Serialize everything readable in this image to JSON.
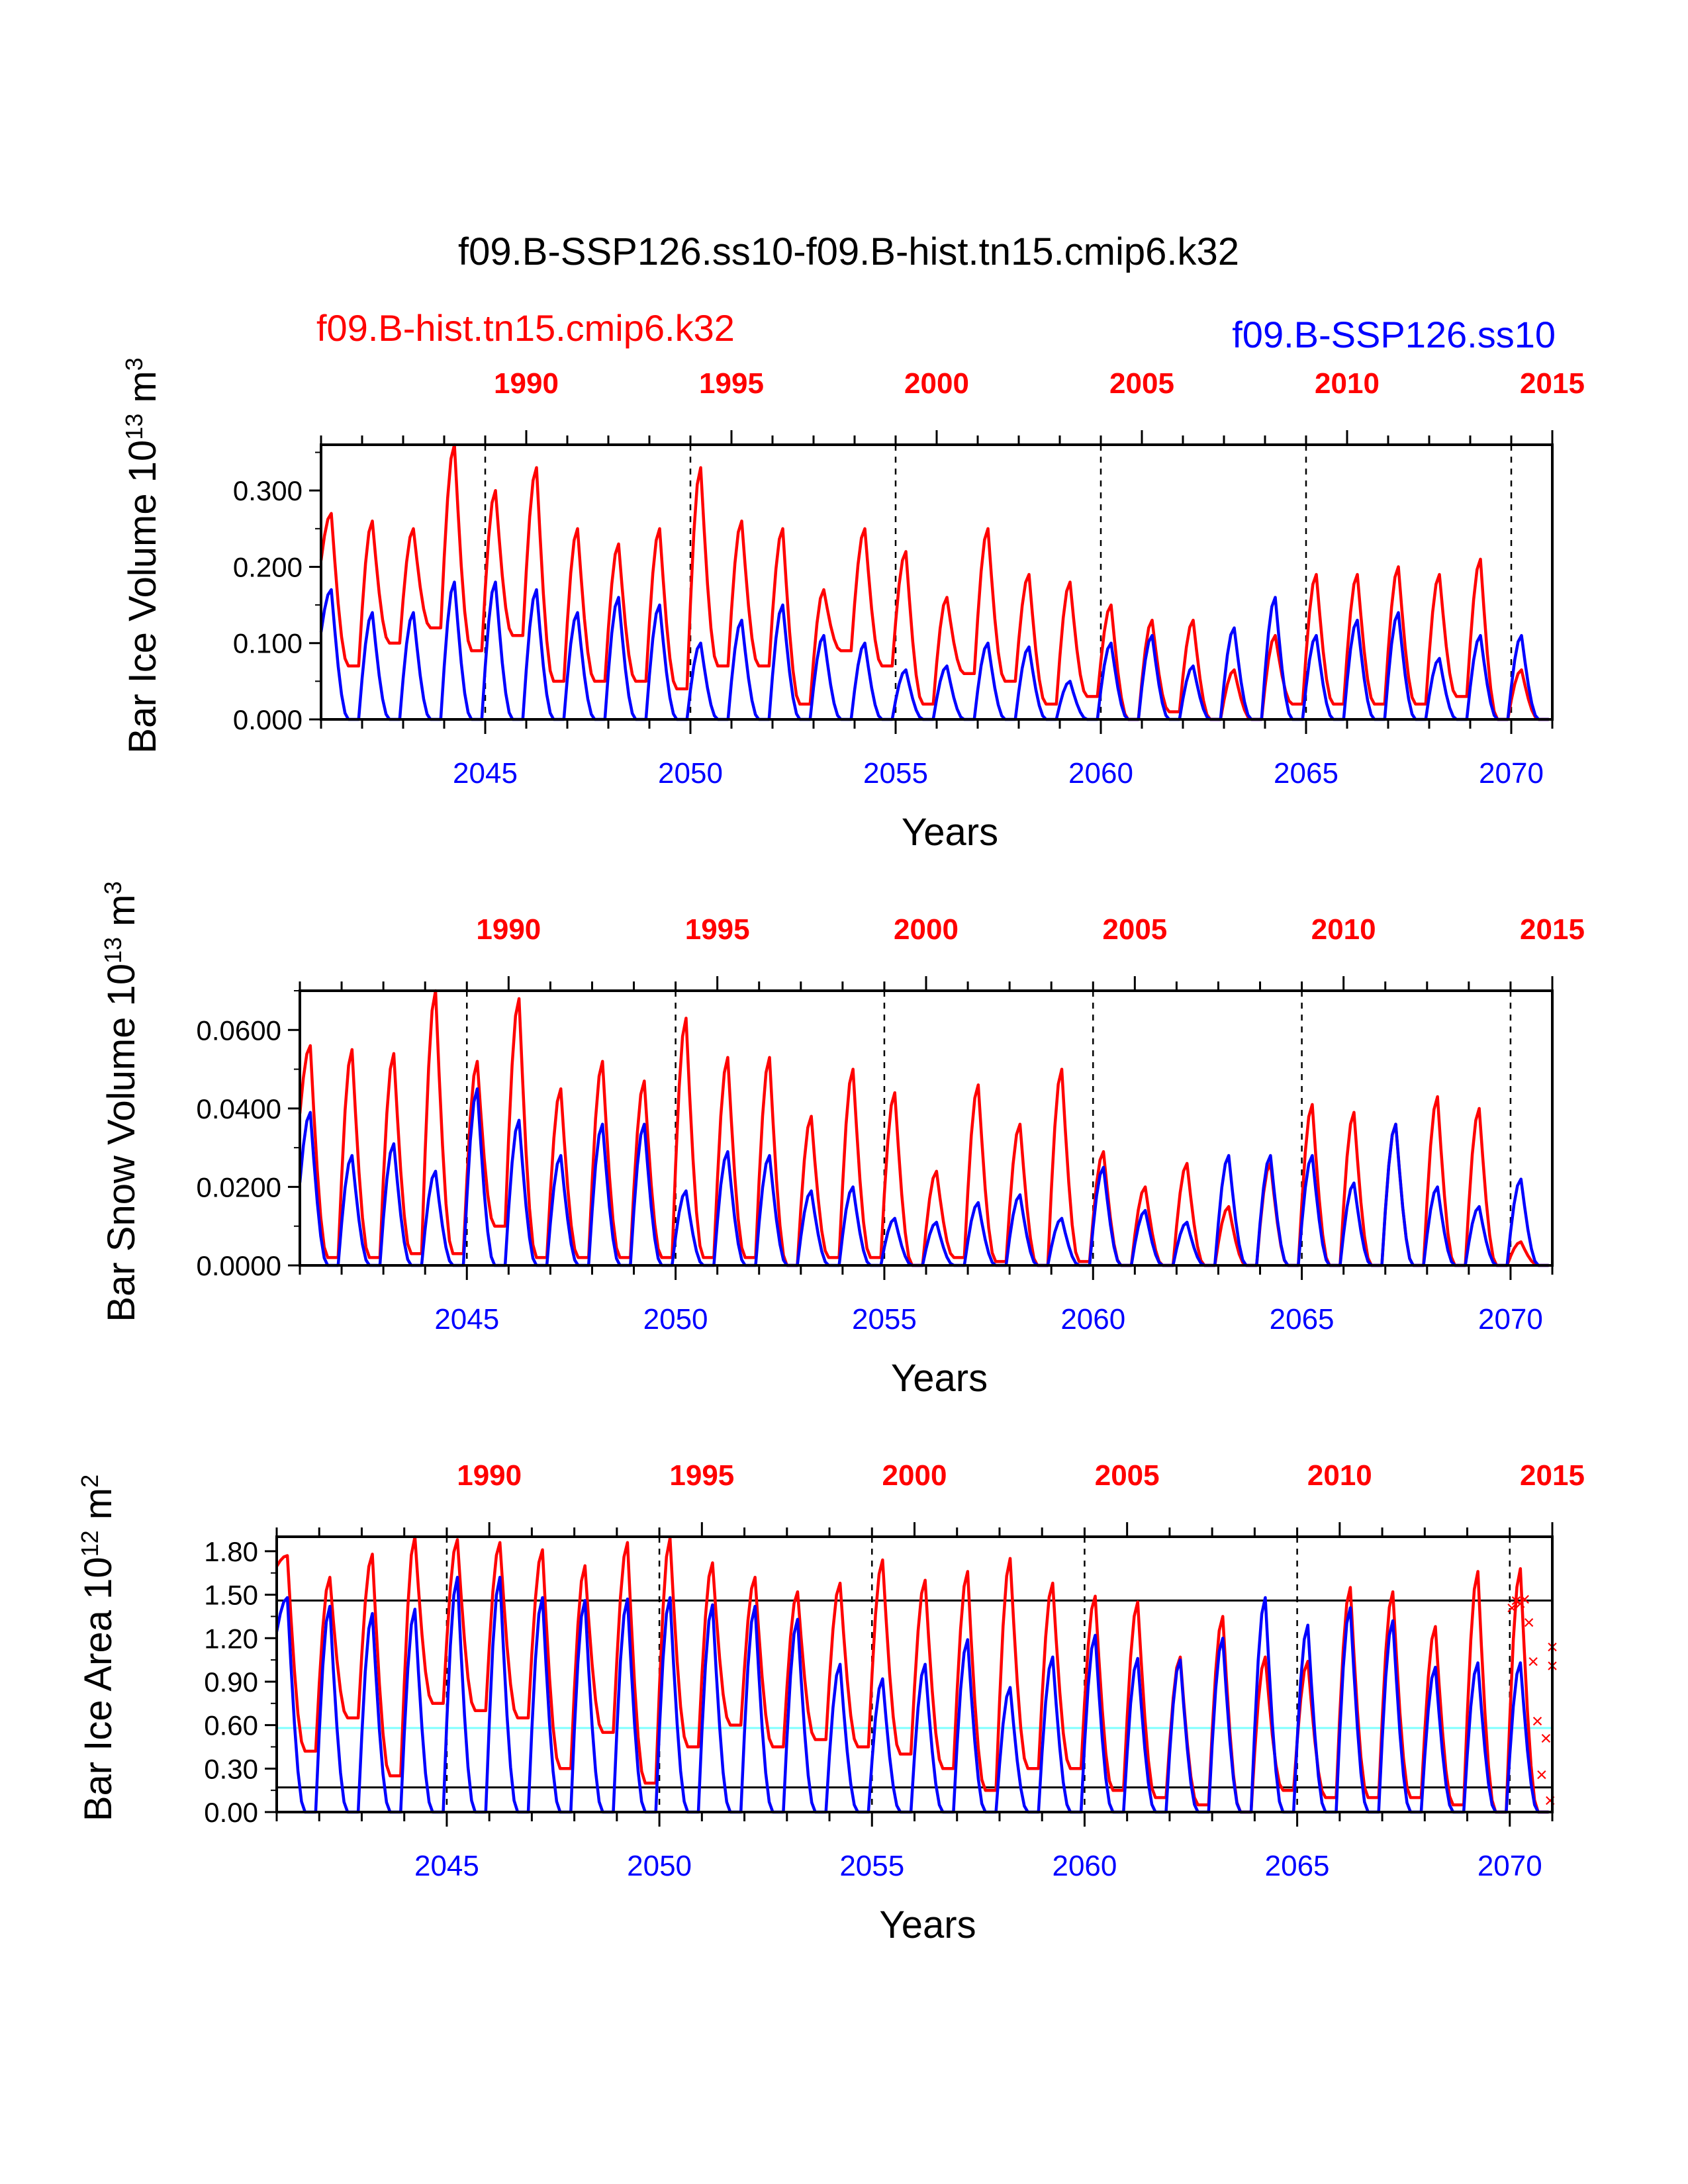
{
  "page": {
    "title": "f09.B-SSP126.ss10-f09.B-hist.tn15.cmip6.k32",
    "legend_left": "f09.B-hist.tn15.cmip6.k32",
    "legend_right": "f09.B-SSP126.ss10"
  },
  "colors": {
    "hist": "#ff0000",
    "ssp": "#0000ff",
    "reference_line": "#7fffff",
    "axis": "#000000"
  },
  "chart_data": [
    {
      "type": "line",
      "ylabel": "Bar Ice Volume 10",
      "ylabel_exp": "13",
      "ylabel_unit": " m",
      "ylabel_unit_exp": "3",
      "xlabel": "Years",
      "ylim": [
        0,
        0.36
      ],
      "yticks": [
        "0.000",
        "0.100",
        "0.200",
        "0.300"
      ],
      "ytick_values": [
        0,
        0.1,
        0.2,
        0.3
      ],
      "xlim": [
        2041,
        2071
      ],
      "bottom_ticks": [
        "2045",
        "2050",
        "2055",
        "2060",
        "2065",
        "2070"
      ],
      "bottom_tick_values": [
        2045,
        2050,
        2055,
        2060,
        2065,
        2070
      ],
      "top_ticks": [
        "1990",
        "1995",
        "2000",
        "2005",
        "2010",
        "2015"
      ],
      "top_tick_values": [
        2046,
        2051,
        2056,
        2061,
        2066,
        2071
      ],
      "divider_years": [
        2045,
        2050,
        2055,
        2060,
        2065,
        2070
      ],
      "series": [
        {
          "key": "hist",
          "annual_max": [
            0.27,
            0.26,
            0.25,
            0.36,
            0.3,
            0.33,
            0.25,
            0.23,
            0.25,
            0.33,
            0.26,
            0.25,
            0.17,
            0.25,
            0.22,
            0.16,
            0.25,
            0.19,
            0.18,
            0.15,
            0.13,
            0.13,
            0.065,
            0.11,
            0.19,
            0.19,
            0.2,
            0.19,
            0.21,
            0.065
          ],
          "annual_min": [
            0.17,
            0.07,
            0.1,
            0.12,
            0.09,
            0.11,
            0.05,
            0.05,
            0.05,
            0.04,
            0.07,
            0.07,
            0.02,
            0.09,
            0.07,
            0.02,
            0.06,
            0.05,
            0.02,
            0.03,
            0.0,
            0.01,
            0.0,
            0.0,
            0.02,
            0.02,
            0.02,
            0.02,
            0.03,
            0.0
          ]
        },
        {
          "key": "ssp",
          "annual_max": [
            0.17,
            0.14,
            0.14,
            0.18,
            0.18,
            0.17,
            0.14,
            0.16,
            0.15,
            0.1,
            0.13,
            0.15,
            0.11,
            0.1,
            0.065,
            0.07,
            0.1,
            0.095,
            0.05,
            0.1,
            0.11,
            0.07,
            0.12,
            0.16,
            0.11,
            0.13,
            0.14,
            0.08,
            0.11,
            0.11
          ],
          "annual_min": [
            0.08,
            0,
            0,
            0,
            0,
            0,
            0,
            0,
            0,
            0,
            0,
            0,
            0,
            0,
            0,
            0,
            0,
            0,
            0,
            0,
            0,
            0,
            0,
            0,
            0,
            0,
            0,
            0,
            0,
            0
          ]
        }
      ]
    },
    {
      "type": "line",
      "ylabel": "Bar Snow Volume 10",
      "ylabel_exp": "13",
      "ylabel_unit": " m",
      "ylabel_unit_exp": "3",
      "xlabel": "Years",
      "ylim": [
        0,
        0.07
      ],
      "yticks": [
        "0.0000",
        "0.0200",
        "0.0400",
        "0.0600"
      ],
      "ytick_values": [
        0,
        0.02,
        0.04,
        0.06
      ],
      "xlim": [
        2041,
        2071
      ],
      "bottom_ticks": [
        "2045",
        "2050",
        "2055",
        "2060",
        "2065",
        "2070"
      ],
      "bottom_tick_values": [
        2045,
        2050,
        2055,
        2060,
        2065,
        2070
      ],
      "top_ticks": [
        "1990",
        "1995",
        "2000",
        "2005",
        "2010",
        "2015"
      ],
      "top_tick_values": [
        2046,
        2051,
        2056,
        2061,
        2066,
        2071
      ],
      "divider_years": [
        2045,
        2050,
        2055,
        2060,
        2065,
        2070
      ],
      "series": [
        {
          "key": "hist",
          "annual_max": [
            0.056,
            0.055,
            0.054,
            0.07,
            0.052,
            0.068,
            0.045,
            0.052,
            0.047,
            0.063,
            0.053,
            0.053,
            0.038,
            0.05,
            0.044,
            0.024,
            0.046,
            0.036,
            0.05,
            0.029,
            0.02,
            0.026,
            0.015,
            0.026,
            0.041,
            0.039,
            0.036,
            0.043,
            0.04,
            0.006
          ],
          "annual_min": [
            0.028,
            0.002,
            0.002,
            0.003,
            0.003,
            0.01,
            0.002,
            0.002,
            0.002,
            0.002,
            0.002,
            0.002,
            0.0,
            0.002,
            0.002,
            0.0,
            0.002,
            0.001,
            0.0,
            0.001,
            0.0,
            0.0,
            0.0,
            0.0,
            0.0,
            0.0,
            0.0,
            0.0,
            0.0,
            0.0
          ]
        },
        {
          "key": "ssp",
          "annual_max": [
            0.039,
            0.028,
            0.031,
            0.024,
            0.045,
            0.037,
            0.028,
            0.036,
            0.036,
            0.019,
            0.029,
            0.028,
            0.019,
            0.02,
            0.012,
            0.011,
            0.016,
            0.018,
            0.012,
            0.025,
            0.014,
            0.011,
            0.028,
            0.028,
            0.028,
            0.021,
            0.036,
            0.02,
            0.015,
            0.022
          ],
          "annual_min": [
            0.01,
            0,
            0,
            0,
            0,
            0,
            0,
            0,
            0,
            0,
            0,
            0,
            0,
            0,
            0,
            0,
            0,
            0,
            0,
            0,
            0,
            0,
            0,
            0,
            0,
            0,
            0,
            0,
            0,
            0
          ]
        }
      ]
    },
    {
      "type": "line",
      "ylabel": "Bar Ice Area 10",
      "ylabel_exp": "12",
      "ylabel_unit": " m",
      "ylabel_unit_exp": "2",
      "xlabel": "Years",
      "ylim": [
        0,
        1.9
      ],
      "yticks": [
        "0.00",
        "0.30",
        "0.60",
        "0.90",
        "1.20",
        "1.50",
        "1.80"
      ],
      "ytick_values": [
        0,
        0.3,
        0.6,
        0.9,
        1.2,
        1.5,
        1.8
      ],
      "xlim": [
        2041,
        2071
      ],
      "bottom_ticks": [
        "2045",
        "2050",
        "2055",
        "2060",
        "2065",
        "2070"
      ],
      "bottom_tick_values": [
        2045,
        2050,
        2055,
        2060,
        2065,
        2070
      ],
      "top_ticks": [
        "1990",
        "1995",
        "2000",
        "2005",
        "2010",
        "2015"
      ],
      "top_tick_values": [
        2046,
        2051,
        2056,
        2061,
        2066,
        2071
      ],
      "divider_years": [
        2045,
        2050,
        2055,
        2060,
        2065,
        2070
      ],
      "hlines": [
        {
          "value": 1.46,
          "color": "#000000"
        },
        {
          "value": 0.58,
          "color": "#7fffff"
        },
        {
          "value": 0.17,
          "color": "#000000"
        }
      ],
      "series": [
        {
          "key": "hist",
          "annual_max": [
            1.77,
            1.62,
            1.78,
            1.9,
            1.88,
            1.86,
            1.81,
            1.7,
            1.86,
            1.89,
            1.72,
            1.62,
            1.52,
            1.58,
            1.74,
            1.6,
            1.66,
            1.75,
            1.58,
            1.49,
            1.45,
            1.07,
            1.35,
            1.07,
            1.04,
            1.55,
            1.52,
            1.28,
            1.66,
            1.68
          ],
          "annual_min": [
            1.65,
            0.42,
            0.65,
            0.25,
            0.75,
            0.7,
            0.65,
            0.3,
            0.55,
            0.2,
            0.45,
            0.6,
            0.45,
            0.5,
            0.45,
            0.4,
            0.3,
            0.15,
            0.3,
            0.3,
            0.15,
            0.1,
            0.05,
            0.0,
            0.15,
            0.1,
            0.1,
            0.1,
            0.05,
            0.0
          ]
        },
        {
          "key": "ssp",
          "annual_max": [
            1.48,
            1.42,
            1.37,
            1.4,
            1.62,
            1.62,
            1.48,
            1.46,
            1.47,
            1.48,
            1.43,
            1.42,
            1.33,
            1.02,
            0.92,
            1.02,
            1.19,
            0.86,
            1.07,
            1.22,
            1.06,
            1.05,
            1.2,
            1.48,
            1.29,
            1.41,
            1.32,
            1.0,
            1.03,
            1.03
          ],
          "annual_min": [
            1.1,
            0,
            0,
            0,
            0,
            0,
            0,
            0,
            0,
            0,
            0,
            0,
            0,
            0,
            0,
            0,
            0,
            0,
            0,
            0,
            0,
            0,
            0,
            0,
            0,
            0,
            0,
            0,
            0,
            0
          ]
        }
      ],
      "markers": {
        "key": "hist",
        "symbol": "×",
        "points": [
          [
            2070.05,
            1.4
          ],
          [
            2070.15,
            1.45
          ],
          [
            2070.25,
            1.43
          ],
          [
            2070.35,
            1.46
          ],
          [
            2070.45,
            1.3
          ],
          [
            2070.55,
            1.03
          ],
          [
            2070.65,
            0.62
          ],
          [
            2070.75,
            0.25
          ],
          [
            2070.85,
            0.5
          ],
          [
            2070.95,
            0.07
          ],
          [
            2071.0,
            1.13
          ],
          [
            2071.0,
            1.0
          ]
        ]
      }
    }
  ]
}
